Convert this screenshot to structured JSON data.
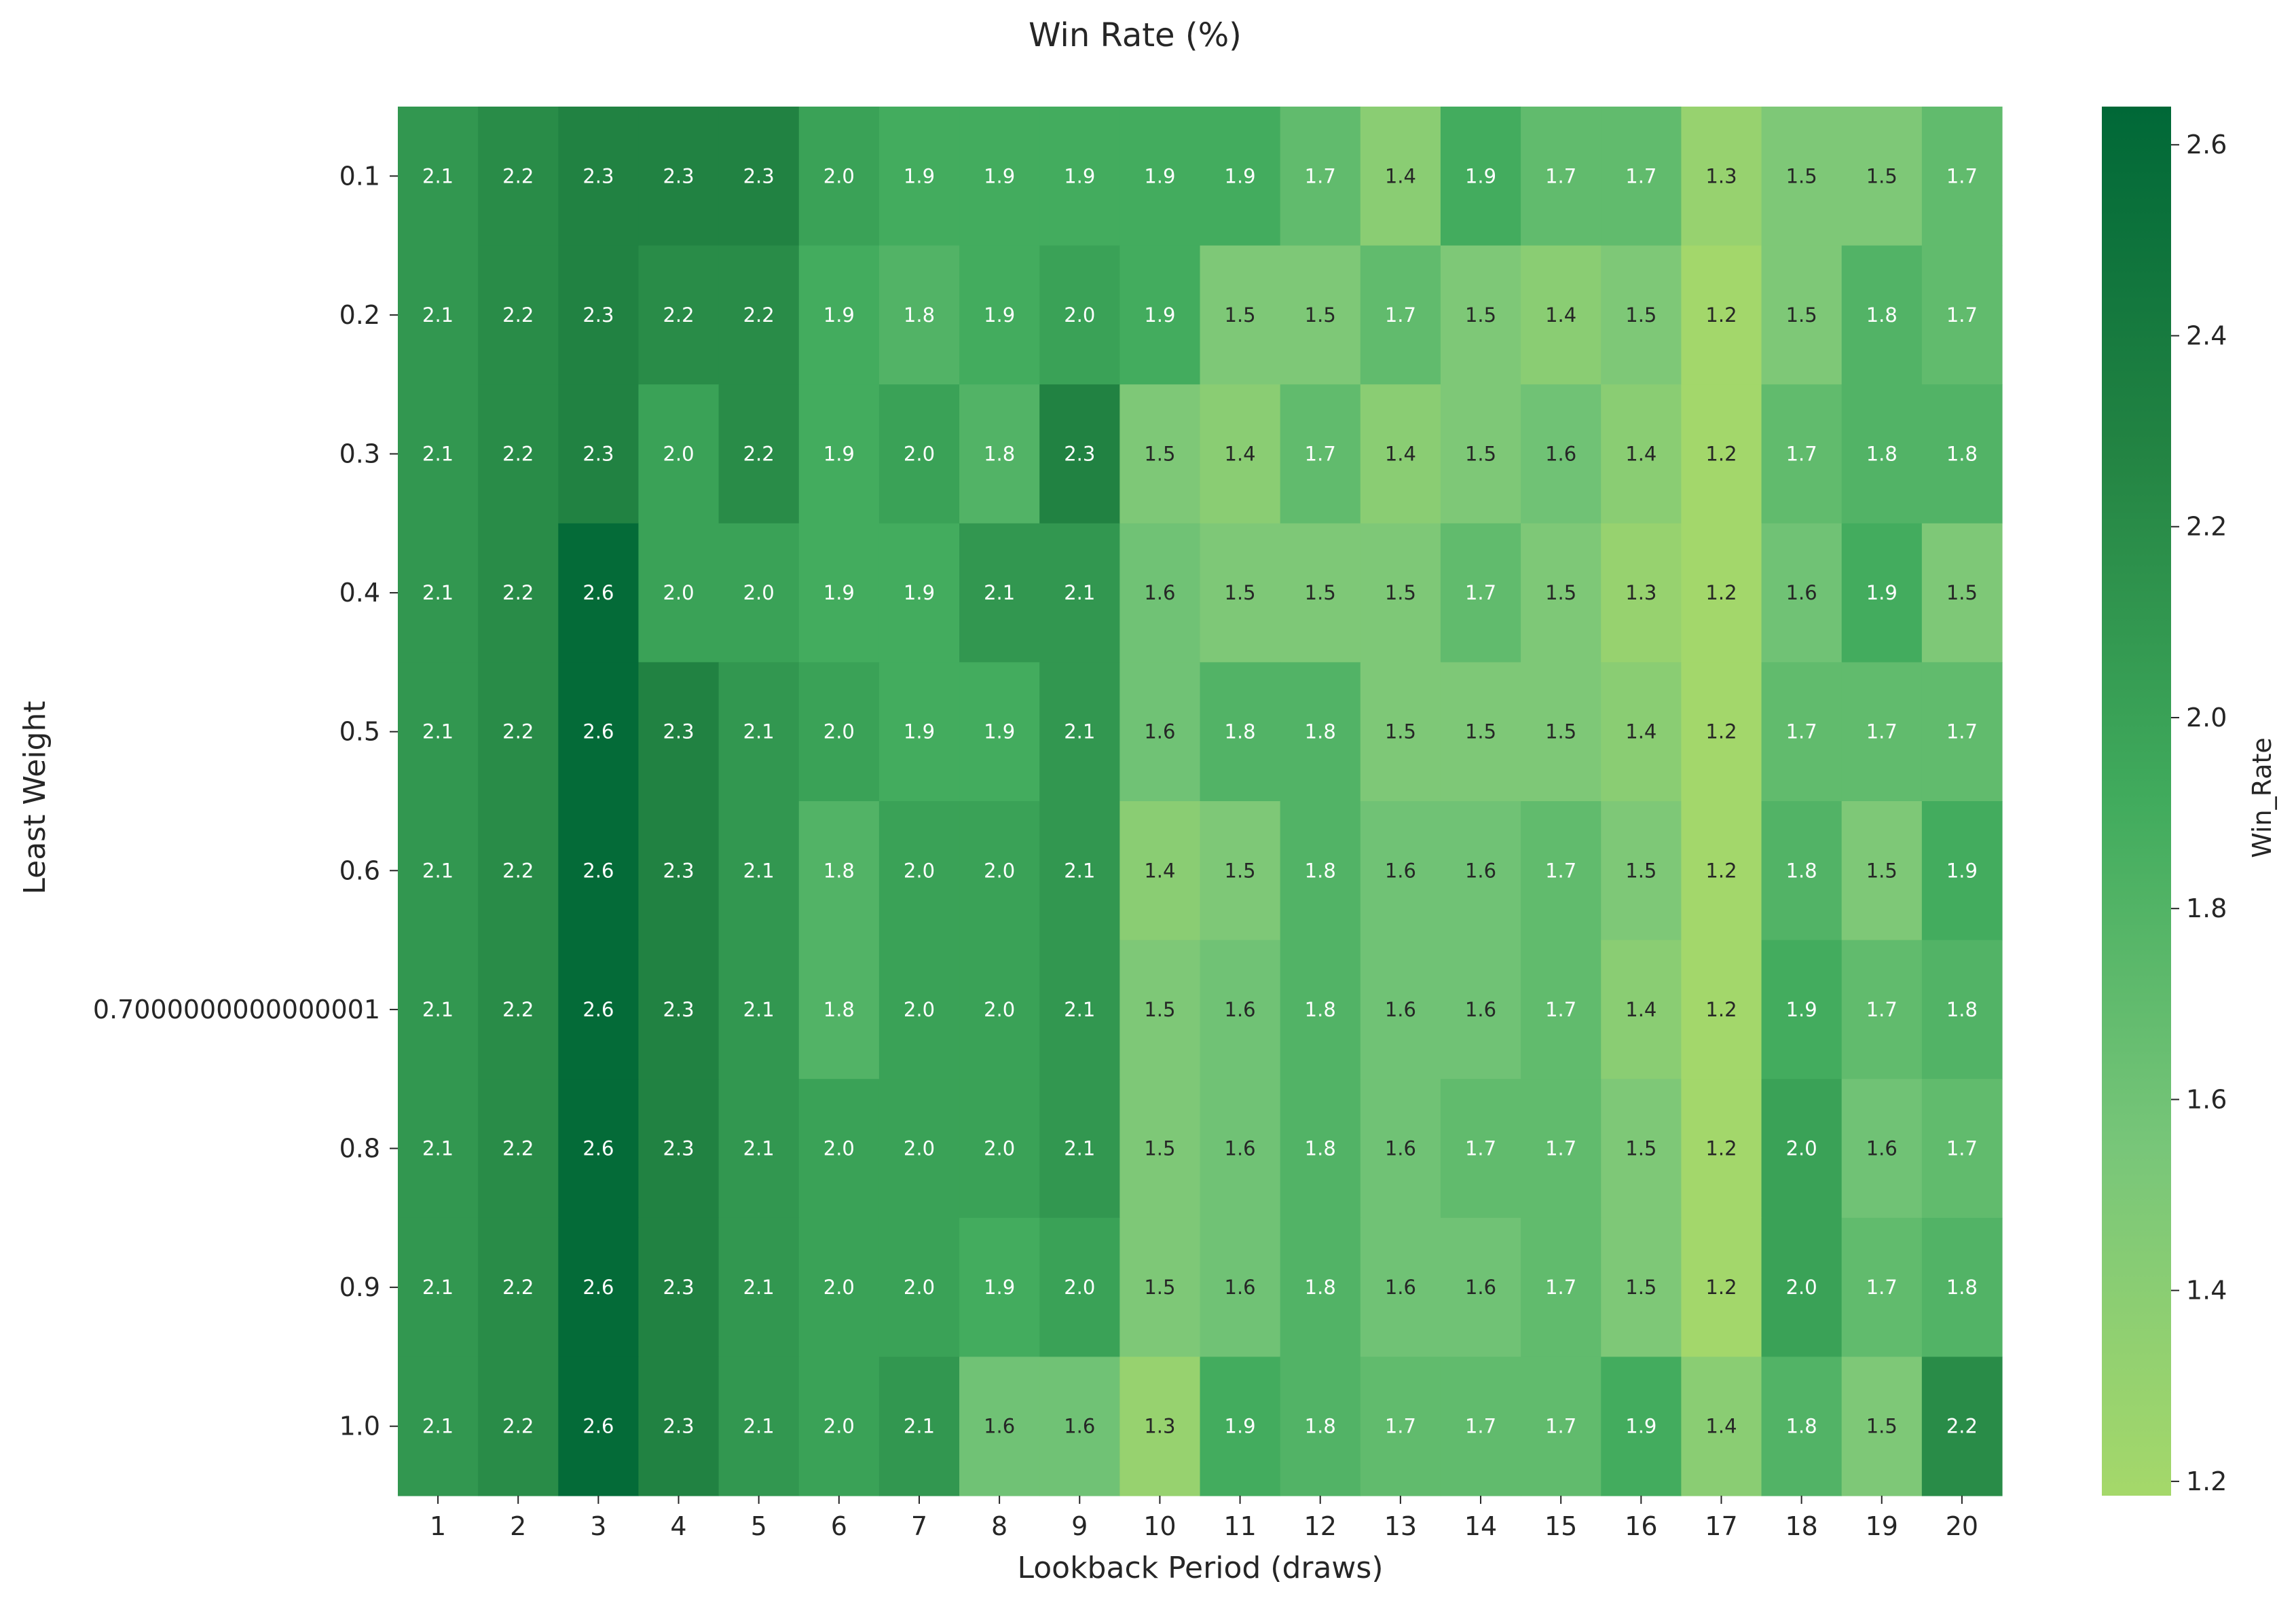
{
  "chart_data": {
    "type": "heatmap",
    "title": "Win Rate (%)",
    "xlabel": "Lookback Period (draws)",
    "ylabel": "Least Weight",
    "colorbar_label": "Win_Rate",
    "x_categories": [
      "1",
      "2",
      "3",
      "4",
      "5",
      "6",
      "7",
      "8",
      "9",
      "10",
      "11",
      "12",
      "13",
      "14",
      "15",
      "16",
      "17",
      "18",
      "19",
      "20"
    ],
    "y_categories": [
      "0.1",
      "0.2",
      "0.3",
      "0.4",
      "0.5",
      "0.6",
      "0.7000000000000001",
      "0.8",
      "0.9",
      "1.0"
    ],
    "values": [
      [
        2.1,
        2.2,
        2.3,
        2.3,
        2.3,
        2.0,
        1.9,
        1.9,
        1.9,
        1.9,
        1.9,
        1.7,
        1.4,
        1.9,
        1.7,
        1.7,
        1.3,
        1.5,
        1.5,
        1.7
      ],
      [
        2.1,
        2.2,
        2.3,
        2.2,
        2.2,
        1.9,
        1.8,
        1.9,
        2.0,
        1.9,
        1.5,
        1.5,
        1.7,
        1.5,
        1.4,
        1.5,
        1.2,
        1.5,
        1.8,
        1.7
      ],
      [
        2.1,
        2.2,
        2.3,
        2.0,
        2.2,
        1.9,
        2.0,
        1.8,
        2.3,
        1.5,
        1.4,
        1.7,
        1.4,
        1.5,
        1.6,
        1.4,
        1.2,
        1.7,
        1.8,
        1.8
      ],
      [
        2.1,
        2.2,
        2.6,
        2.0,
        2.0,
        1.9,
        1.9,
        2.1,
        2.1,
        1.6,
        1.5,
        1.5,
        1.5,
        1.7,
        1.5,
        1.3,
        1.2,
        1.6,
        1.9,
        1.5
      ],
      [
        2.1,
        2.2,
        2.6,
        2.3,
        2.1,
        2.0,
        1.9,
        1.9,
        2.1,
        1.6,
        1.8,
        1.8,
        1.5,
        1.5,
        1.5,
        1.4,
        1.2,
        1.7,
        1.7,
        1.7
      ],
      [
        2.1,
        2.2,
        2.6,
        2.3,
        2.1,
        1.8,
        2.0,
        2.0,
        2.1,
        1.4,
        1.5,
        1.8,
        1.6,
        1.6,
        1.7,
        1.5,
        1.2,
        1.8,
        1.5,
        1.9
      ],
      [
        2.1,
        2.2,
        2.6,
        2.3,
        2.1,
        1.8,
        2.0,
        2.0,
        2.1,
        1.5,
        1.6,
        1.8,
        1.6,
        1.6,
        1.7,
        1.4,
        1.2,
        1.9,
        1.7,
        1.8
      ],
      [
        2.1,
        2.2,
        2.6,
        2.3,
        2.1,
        2.0,
        2.0,
        2.0,
        2.1,
        1.5,
        1.6,
        1.8,
        1.6,
        1.7,
        1.7,
        1.5,
        1.2,
        2.0,
        1.6,
        1.7
      ],
      [
        2.1,
        2.2,
        2.6,
        2.3,
        2.1,
        2.0,
        2.0,
        1.9,
        2.0,
        1.5,
        1.6,
        1.8,
        1.6,
        1.6,
        1.7,
        1.5,
        1.2,
        2.0,
        1.7,
        1.8
      ],
      [
        2.1,
        2.2,
        2.6,
        2.3,
        2.1,
        2.0,
        2.1,
        1.6,
        1.6,
        1.3,
        1.9,
        1.8,
        1.7,
        1.7,
        1.7,
        1.9,
        1.4,
        1.8,
        1.5,
        2.2
      ]
    ],
    "colorbar_range": [
      1.185,
      2.64
    ],
    "colorbar_ticks": [
      "1.2",
      "1.4",
      "1.6",
      "1.8",
      "2.0",
      "2.2",
      "2.4",
      "2.6"
    ],
    "colormap": [
      "#a5d86a",
      "#78c679",
      "#41ab5d",
      "#238443",
      "#006837"
    ],
    "text_light": "#ffffff",
    "text_dark": "#262626",
    "grid": false,
    "legend": "colorbar-right"
  }
}
